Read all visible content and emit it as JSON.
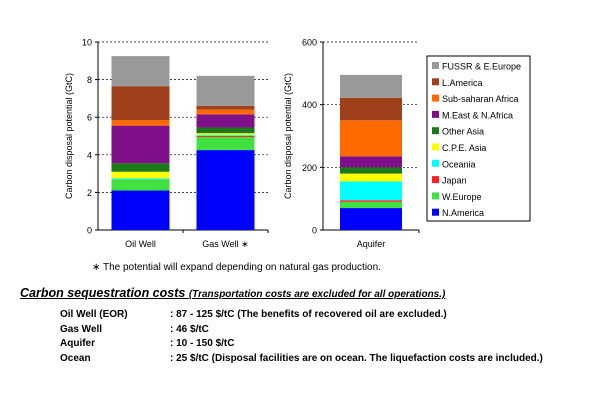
{
  "colors": {
    "FUSSR & E.Europe": "#999999",
    "L.America": "#a0401a",
    "Sub-saharan Africa": "#ff6a00",
    "M.East & N.Africa": "#80108a",
    "Other Asia": "#1a7a1a",
    "C.P.E. Asia": "#ffff00",
    "Oceania": "#00ffff",
    "Japan": "#ff2020",
    "W.Europe": "#40e040",
    "N.America": "#0000ff"
  },
  "chart_data": [
    {
      "type": "bar",
      "stacked": true,
      "ylabel": "Carbon disposal potential (GtC)",
      "ylim": [
        0,
        10
      ],
      "yticks": [
        0,
        2,
        4,
        6,
        8,
        10
      ],
      "grid": "horizontal dashed",
      "categories": [
        "Oil Well",
        "Gas Well ∗"
      ],
      "series": [
        {
          "name": "N.America",
          "values": [
            2.1,
            4.25
          ]
        },
        {
          "name": "W.Europe",
          "values": [
            0.6,
            0.7
          ]
        },
        {
          "name": "Japan",
          "values": [
            0.0,
            0.05
          ]
        },
        {
          "name": "Oceania",
          "values": [
            0.05,
            0.05
          ]
        },
        {
          "name": "C.P.E. Asia",
          "values": [
            0.35,
            0.1
          ]
        },
        {
          "name": "Other Asia",
          "values": [
            0.45,
            0.3
          ]
        },
        {
          "name": "M.East & N.Africa",
          "values": [
            2.0,
            0.7
          ]
        },
        {
          "name": "Sub-saharan Africa",
          "values": [
            0.3,
            0.25
          ]
        },
        {
          "name": "L.America",
          "values": [
            1.8,
            0.2
          ]
        },
        {
          "name": "FUSSR & E.Europe",
          "values": [
            1.6,
            1.6
          ]
        }
      ]
    },
    {
      "type": "bar",
      "stacked": true,
      "ylabel": "Carbon disposal potential (GtC)",
      "ylim": [
        0,
        600
      ],
      "yticks": [
        0,
        200,
        400,
        600
      ],
      "grid": "horizontal dashed",
      "categories": [
        "Aquifer"
      ],
      "legend_position": "right",
      "series": [
        {
          "name": "N.America",
          "values": [
            70
          ]
        },
        {
          "name": "W.Europe",
          "values": [
            20
          ]
        },
        {
          "name": "Japan",
          "values": [
            5
          ]
        },
        {
          "name": "Oceania",
          "values": [
            60
          ]
        },
        {
          "name": "C.P.E. Asia",
          "values": [
            25
          ]
        },
        {
          "name": "Other Asia",
          "values": [
            20
          ]
        },
        {
          "name": "M.East & N.Africa",
          "values": [
            35
          ]
        },
        {
          "name": "Sub-saharan Africa",
          "values": [
            115
          ]
        },
        {
          "name": "L.America",
          "values": [
            72
          ]
        },
        {
          "name": "FUSSR & E.Europe",
          "values": [
            73
          ]
        }
      ]
    }
  ],
  "legend": [
    "FUSSR & E.Europe",
    "L.America",
    "Sub-saharan Africa",
    "M.East & N.Africa",
    "Other Asia",
    "C.P.E. Asia",
    "Oceania",
    "Japan",
    "W.Europe",
    "N.America"
  ],
  "footnote": "∗ The potential will expand depending on natural gas production.",
  "costs_section": {
    "title_main": "Carbon ",
    "title_keyword": "sequestration",
    "title_rest": " costs ",
    "title_note": "(Transportation costs are excluded for all operations.)",
    "rows": [
      {
        "label": "Oil Well (EOR)",
        "value": ": 87 - 125 $/tC (The benefits of recovered oil are excluded.)"
      },
      {
        "label": "Gas Well",
        "value": ": 46 $/tC"
      },
      {
        "label": "Aquifer",
        "value": ": 10 - 150 $/tC"
      },
      {
        "label": "Ocean",
        "value": ": 25 $/tC (Disposal facilities are on ocean. The liquefaction costs are included.)"
      }
    ]
  }
}
